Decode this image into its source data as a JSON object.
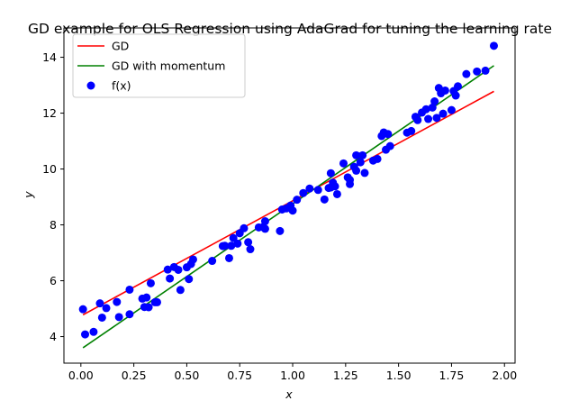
{
  "chart_data": {
    "type": "scatter",
    "title": "GD example for OLS Regression using AdaGrad for tuning the learning rate",
    "xlabel": "x",
    "ylabel": "y",
    "xlim": [
      -0.08,
      2.05
    ],
    "ylim": [
      3.05,
      15.05
    ],
    "xticks": [
      "0.00",
      "0.25",
      "0.50",
      "0.75",
      "1.00",
      "1.25",
      "1.50",
      "1.75",
      "2.00"
    ],
    "yticks": [
      "4",
      "6",
      "8",
      "10",
      "12",
      "14"
    ],
    "grid": false,
    "legend_position": "top-left",
    "series": [
      {
        "name": "GD",
        "kind": "line",
        "color": "#ff0000",
        "x": [
          0.01,
          1.95
        ],
        "y": [
          4.78,
          12.78
        ]
      },
      {
        "name": "GD with momentum",
        "kind": "line",
        "color": "#008000",
        "x": [
          0.01,
          1.95
        ],
        "y": [
          3.6,
          13.7
        ]
      },
      {
        "name": "f(x)",
        "kind": "scatter",
        "color": "#0000ff",
        "x": [
          0.01,
          0.02,
          0.06,
          0.09,
          0.1,
          0.12,
          0.17,
          0.18,
          0.23,
          0.23,
          0.29,
          0.3,
          0.31,
          0.32,
          0.33,
          0.35,
          0.36,
          0.41,
          0.42,
          0.44,
          0.46,
          0.47,
          0.5,
          0.51,
          0.52,
          0.53,
          0.62,
          0.67,
          0.68,
          0.7,
          0.71,
          0.72,
          0.74,
          0.75,
          0.77,
          0.79,
          0.8,
          0.84,
          0.86,
          0.87,
          0.87,
          0.94,
          0.95,
          0.97,
          0.99,
          1.0,
          1.02,
          1.05,
          1.08,
          1.12,
          1.15,
          1.17,
          1.18,
          1.18,
          1.19,
          1.2,
          1.21,
          1.24,
          1.26,
          1.27,
          1.27,
          1.29,
          1.3,
          1.3,
          1.32,
          1.33,
          1.34,
          1.38,
          1.4,
          1.42,
          1.43,
          1.44,
          1.45,
          1.46,
          1.54,
          1.56,
          1.58,
          1.59,
          1.61,
          1.63,
          1.64,
          1.66,
          1.67,
          1.68,
          1.69,
          1.7,
          1.71,
          1.72,
          1.75,
          1.76,
          1.77,
          1.78,
          1.82,
          1.87,
          1.91,
          1.95
        ],
        "y": [
          4.98,
          4.08,
          4.17,
          5.19,
          4.68,
          5.02,
          5.24,
          4.7,
          4.8,
          5.68,
          5.36,
          5.06,
          5.4,
          5.05,
          5.91,
          5.23,
          5.23,
          6.4,
          6.08,
          6.49,
          6.39,
          5.67,
          6.48,
          6.06,
          6.6,
          6.76,
          6.71,
          7.24,
          7.25,
          6.81,
          7.25,
          7.53,
          7.33,
          7.7,
          7.88,
          7.38,
          7.13,
          7.91,
          7.92,
          8.13,
          7.86,
          7.78,
          8.55,
          8.59,
          8.69,
          8.51,
          8.9,
          9.14,
          9.3,
          9.25,
          8.91,
          9.32,
          9.34,
          9.85,
          9.51,
          9.38,
          9.1,
          10.2,
          9.7,
          9.61,
          9.46,
          10.08,
          10.49,
          9.94,
          10.24,
          10.49,
          9.86,
          10.3,
          10.36,
          11.18,
          11.31,
          10.69,
          11.25,
          10.82,
          11.3,
          11.36,
          11.87,
          11.75,
          12.02,
          12.14,
          11.79,
          12.2,
          12.42,
          11.83,
          12.9,
          12.71,
          11.98,
          12.81,
          12.11,
          12.79,
          12.63,
          12.96,
          13.4,
          13.49,
          13.52,
          14.41
        ]
      }
    ]
  }
}
